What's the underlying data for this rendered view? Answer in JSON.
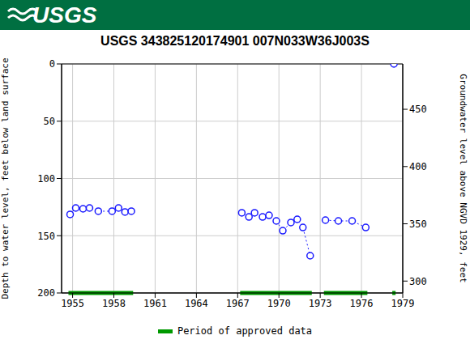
{
  "chart_data": {
    "type": "line",
    "header": "USGS",
    "title": "USGS 343825120174901 007N033W36J003S",
    "ylabel": "Depth to water level, feet below land surface",
    "y2label": "Groundwater level above NGVD 1929, feet",
    "x": [
      1954.82,
      1955.23,
      1955.76,
      1956.23,
      1956.87,
      1957.87,
      1958.34,
      1958.81,
      1959.27,
      1963,
      1967.3,
      1967.82,
      1968.23,
      1968.81,
      1969.28,
      1969.81,
      1970.28,
      1970.87,
      1971.33,
      1971.74,
      1972.27,
      1972.8,
      1973.38,
      1974.32,
      1975.32,
      1976.31,
      1977.3,
      1978.36
    ],
    "values": [
      131.4,
      125.8,
      126.5,
      125.8,
      128.6,
      128.6,
      125.8,
      129.3,
      128.6,
      null,
      130,
      133.6,
      130,
      133.6,
      132.2,
      137.1,
      145.6,
      138.5,
      135.7,
      142.8,
      167.5,
      null,
      136.4,
      137.1,
      137.1,
      142.8,
      null,
      0
    ],
    "color": "#1a1aff",
    "marker": "circle",
    "line_style": "dotted",
    "xlim": [
      1954.2,
      1979
    ],
    "xticks": [
      1955,
      1958,
      1961,
      1964,
      1967,
      1970,
      1973,
      1976,
      1979
    ],
    "ylim": [
      0,
      200
    ],
    "yticks": [
      0,
      50,
      100,
      150,
      200
    ],
    "y2lim": [
      289.6,
      489.6
    ],
    "y2ticks": [
      300,
      350,
      400,
      450
    ],
    "grid": true,
    "legend": "bottom",
    "approved_periods": {
      "name": "Period of approved data",
      "color": "#009900",
      "ranges": [
        [
          1954.7,
          1959.4
        ],
        [
          1967.18,
          1972.39
        ],
        [
          1973.27,
          1976.43
        ],
        [
          1978.24,
          1978.48
        ]
      ]
    }
  }
}
